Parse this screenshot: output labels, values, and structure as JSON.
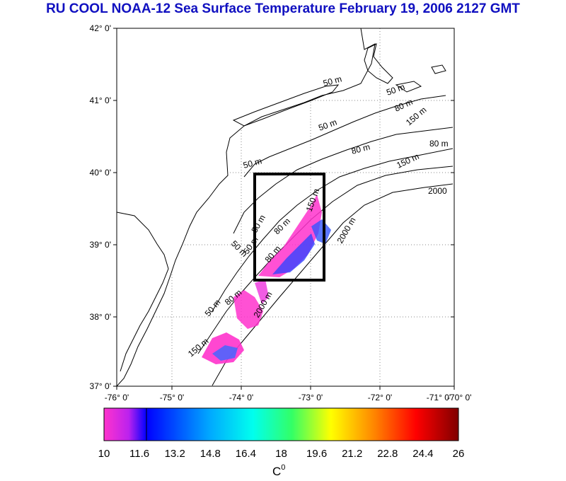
{
  "title": "RU COOL  NOAA-12 Sea Surface Temperature February 19, 2006 2127 GMT",
  "axes": {
    "lat_labels": [
      "42° 0'",
      "41° 0'",
      "40° 0'",
      "39° 0'",
      "38° 0'",
      "37° 0'"
    ],
    "lon_labels": [
      "-76° 0'",
      "-75° 0'",
      "-74° 0'",
      "-73° 0'",
      "-72° 0'",
      "-71° 0'",
      "-70° 0'"
    ]
  },
  "contour_labels": [
    "50 m",
    "50 m",
    "50 m",
    "80 m",
    "50 m",
    "80 m",
    "150 m",
    "2000",
    "150 m",
    "80 m",
    "2000 m",
    "50 m",
    "80 m",
    "50 m",
    "150 m",
    "80 m",
    "50 m",
    "2000 m",
    "150 m",
    "80 m",
    "50 m"
  ],
  "colorbar": {
    "ticks": [
      "10",
      "11.6",
      "13.2",
      "14.8",
      "16.4",
      "18",
      "19.6",
      "21.2",
      "22.8",
      "24.4",
      "26"
    ],
    "unit": "C",
    "unit_sup": "0",
    "colors": [
      "#ff33cc",
      "#0000ff",
      "#00ffff",
      "#33ff66",
      "#ffff00",
      "#ff8800",
      "#ff0000",
      "#880000"
    ]
  }
}
